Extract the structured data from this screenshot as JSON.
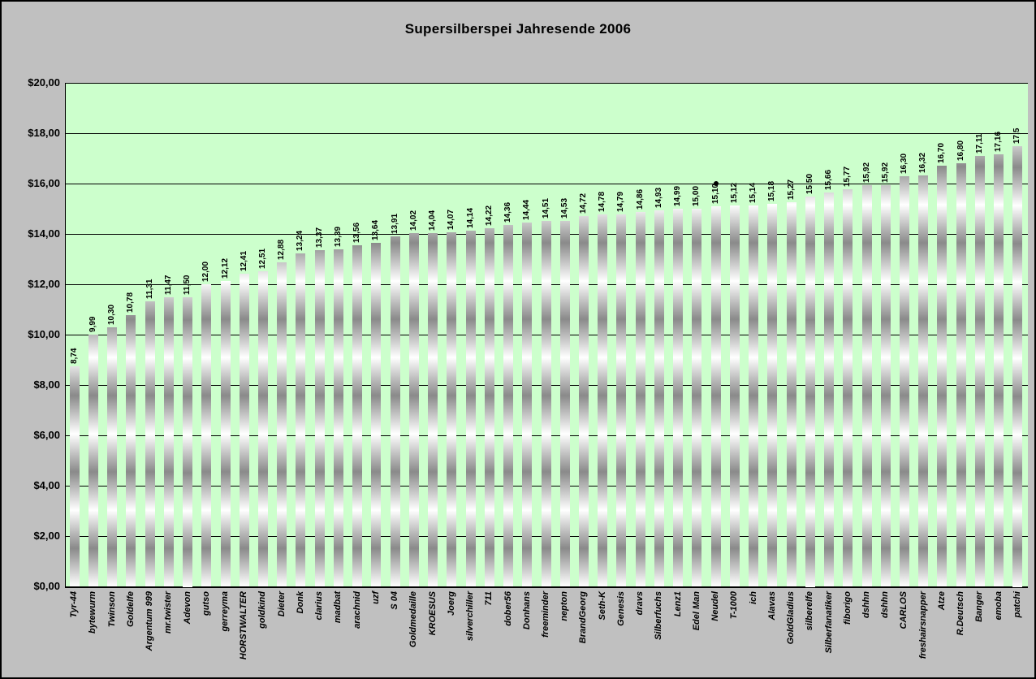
{
  "style": {
    "chart_background": "#c0c0c0",
    "plot_background": "#ccffcc",
    "bar_gradient": [
      "#ffffff",
      "#8a8a8a"
    ],
    "gridline_color": "#000000",
    "text_color": "#000000"
  },
  "chart_data": {
    "type": "bar",
    "title": "Supersilberspei Jahresende 2006",
    "xlabel": "",
    "ylabel": "",
    "ylim": [
      0,
      20
    ],
    "y_tick_step": 2,
    "y_tick_labels": [
      "$20,00",
      "$18,00",
      "$16,00",
      "$14,00",
      "$12,00",
      "$10,00",
      "$8,00",
      "$6,00",
      "$4,00",
      "$2,00",
      "$0,00"
    ],
    "grid": true,
    "legend": "none",
    "categories": [
      "Tyr-44",
      "bytewurm",
      "Twinson",
      "Goldelfe",
      "Argentum 999",
      "mr.twister",
      "Adevon",
      "gutso",
      "gerreyma",
      "HORSTWALTER",
      "goldkind",
      "Dieter",
      "Donk",
      "clarius",
      "madbat",
      "arachnid",
      "uzf",
      "S 04",
      "Goldmedaille",
      "KROESUS",
      "Joerg",
      "silverchiller",
      "711",
      "dober56",
      "Donhans",
      "freeminder",
      "nepton",
      "BrandGeorg",
      "Seth-K",
      "Genesis",
      "dravs",
      "Silberfuchs",
      "Lenz1",
      "Edel Man",
      "Neudel",
      "T-1000",
      "ich",
      "Alavas",
      "GoldGladius",
      "silberelfe",
      "Silberfanatiker",
      "fiborigo",
      "dshhn",
      "dshhn",
      "CARLOS",
      "freshairsnapper",
      "Atze",
      "R.Deutsch",
      "Banger",
      "emoba",
      "patchi"
    ],
    "values": [
      8.74,
      9.99,
      10.3,
      10.78,
      11.31,
      11.47,
      11.5,
      12.0,
      12.12,
      12.41,
      12.51,
      12.88,
      13.24,
      13.37,
      13.39,
      13.56,
      13.64,
      13.91,
      14.02,
      14.04,
      14.07,
      14.14,
      14.22,
      14.36,
      14.44,
      14.51,
      14.53,
      14.72,
      14.78,
      14.79,
      14.86,
      14.93,
      14.99,
      15.0,
      15.1,
      15.12,
      15.14,
      15.18,
      15.27,
      15.5,
      15.66,
      15.77,
      15.92,
      15.92,
      16.3,
      16.32,
      16.7,
      16.8,
      17.11,
      17.16,
      17.5
    ],
    "value_labels": [
      "8,74",
      "9,99",
      "10,30",
      "10,78",
      "11,31",
      "11,47",
      "11,50",
      "12,00",
      "12,12",
      "12,41",
      "12,51",
      "12,88",
      "13,24",
      "13,37",
      "13,39",
      "13,56",
      "13,64",
      "13,91",
      "14,02",
      "14,04",
      "14,07",
      "14,14",
      "14,22",
      "14,36",
      "14,44",
      "14,51",
      "14,53",
      "14,72",
      "14,78",
      "14,79",
      "14,86",
      "14,93",
      "14,99",
      "15,00",
      "15,10",
      "15,12",
      "15,14",
      "15,18",
      "15,27",
      "15,50",
      "15,66",
      "15,77",
      "15,92",
      "15,92",
      "16,30",
      "16,32",
      "16,70",
      "16,80",
      "17,11",
      "17,16",
      "17,5"
    ],
    "annotations": [
      {
        "type": "point-marker",
        "category": "Neudel",
        "value": 16.0
      }
    ]
  }
}
